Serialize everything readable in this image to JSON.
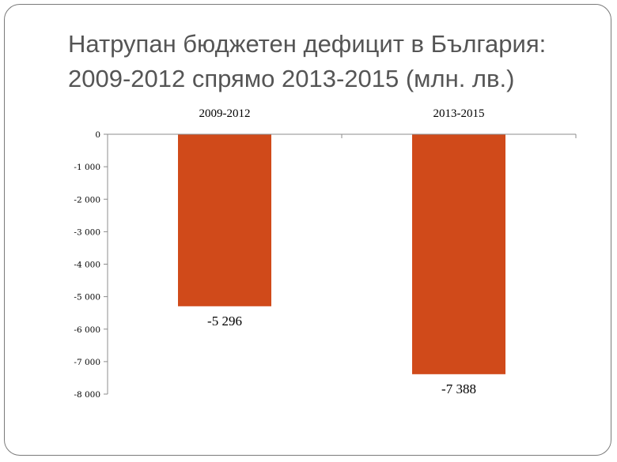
{
  "title_lines": [
    "Натрупан бюджетен дефицит в България:",
    "2009-2012 спрямо 2013-2015 (млн. лв.)"
  ],
  "chart_data": {
    "type": "bar",
    "title": "Натрупан бюджетен дефицит в България: 2009-2012 спрямо 2013-2015 (млн. лв.)",
    "categories": [
      "2009-2012",
      "2013-2015"
    ],
    "values": [
      -5296,
      -7388
    ],
    "data_labels": [
      "-5 296",
      "-7 388"
    ],
    "ylim": [
      -8000,
      0
    ],
    "yticks": [
      0,
      -1000,
      -2000,
      -3000,
      -4000,
      -5000,
      -6000,
      -7000,
      -8000
    ],
    "ytick_labels": [
      "0",
      "-1 000",
      "-2 000",
      "-3 000",
      "-4 000",
      "-5 000",
      "-6 000",
      "-7 000",
      "-8 000"
    ],
    "bar_color": "#d04a1a",
    "grid": false,
    "legend": "none"
  }
}
